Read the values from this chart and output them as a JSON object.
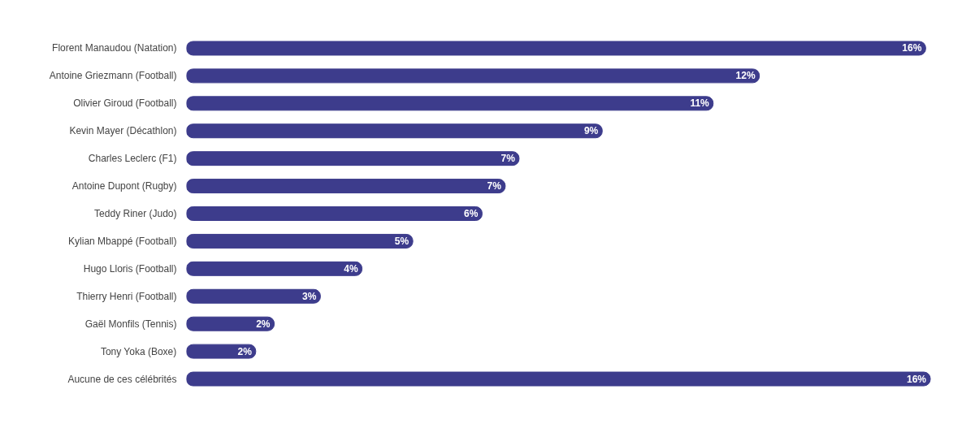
{
  "chart_data": {
    "type": "bar",
    "orientation": "horizontal",
    "categories": [
      "Florent Manaudou (Natation)",
      "Antoine Griezmann (Football)",
      "Olivier Giroud (Football)",
      "Kevin Mayer (Décathlon)",
      "Charles Leclerc (F1)",
      "Antoine Dupont (Rugby)",
      "Teddy Riner (Judo)",
      "Kylian Mbappé (Football)",
      "Hugo Lloris (Football)",
      "Thierry Henri (Football)",
      "Gaël Monfils (Tennis)",
      "Tony Yoka (Boxe)",
      "Aucune de ces célébrités"
    ],
    "values": [
      16.0,
      12.4,
      11.4,
      9.0,
      7.2,
      6.9,
      6.4,
      4.9,
      3.8,
      2.9,
      1.9,
      1.5,
      16.1
    ],
    "value_labels": [
      "16%",
      "12%",
      "11%",
      "9%",
      "7%",
      "7%",
      "6%",
      "5%",
      "4%",
      "3%",
      "2%",
      "2%",
      "16%"
    ],
    "color": "#3d3c8c",
    "grid": false
  }
}
